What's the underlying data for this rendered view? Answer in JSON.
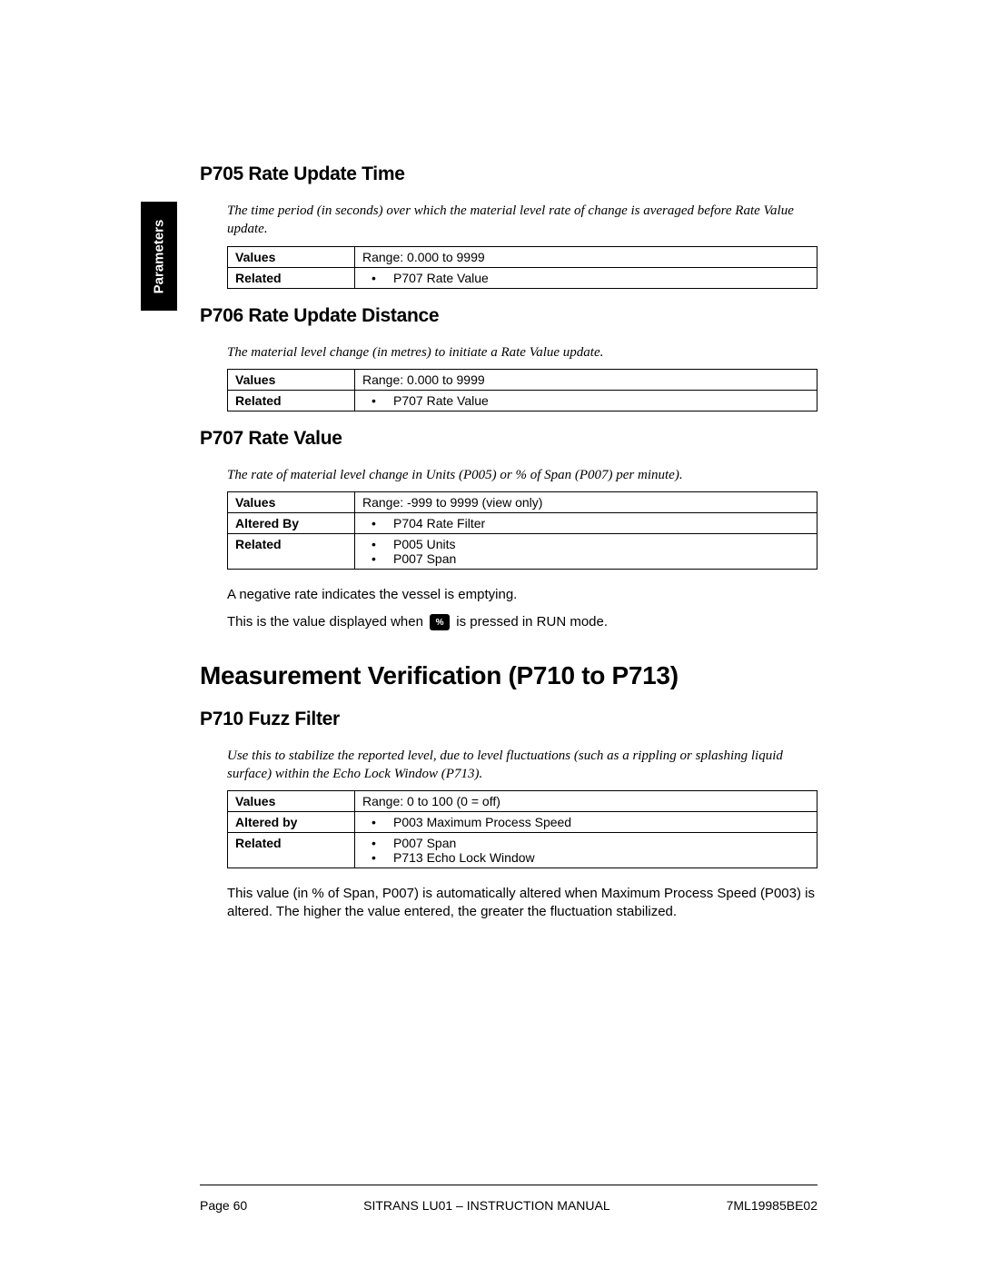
{
  "sideTab": "Parameters",
  "sections": {
    "p705": {
      "heading": "P705 Rate Update Time",
      "desc": "The time period (in seconds) over which the material level rate of change is averaged before Rate Value update.",
      "rows": [
        {
          "label": "Values",
          "text": "Range: 0.000 to 9999"
        },
        {
          "label": "Related",
          "list": [
            "P707 Rate Value"
          ]
        }
      ]
    },
    "p706": {
      "heading": "P706 Rate Update Distance",
      "desc": "The material level change (in metres) to initiate a Rate Value update.",
      "rows": [
        {
          "label": "Values",
          "text": "Range: 0.000 to 9999"
        },
        {
          "label": "Related",
          "list": [
            "P707 Rate Value"
          ]
        }
      ]
    },
    "p707": {
      "heading": "P707 Rate Value",
      "desc": "The rate of material level change in Units (P005) or % of Span (P007) per minute).",
      "rows": [
        {
          "label": "Values",
          "text": "Range: -999 to 9999 (view only)"
        },
        {
          "label": "Altered By",
          "list": [
            "P704 Rate Filter"
          ]
        },
        {
          "label": "Related",
          "list": [
            "P005 Units",
            "P007 Span"
          ]
        }
      ],
      "note1": "A negative rate indicates the vessel is emptying.",
      "note2a": "This is the value displayed when ",
      "note2b": " is pressed in RUN mode."
    },
    "majorHeading": "Measurement Verification (P710 to P713)",
    "p710": {
      "heading": "P710 Fuzz Filter",
      "desc": "Use this to stabilize the reported level, due to level fluctuations (such as a rippling or splashing liquid surface) within the Echo Lock Window (P713).",
      "rows": [
        {
          "label": "Values",
          "text": "Range: 0 to 100 (0 = off)"
        },
        {
          "label": "Altered by",
          "list": [
            "P003 Maximum Process Speed"
          ]
        },
        {
          "label": "Related",
          "list": [
            "P007 Span",
            "P713 Echo Lock Window"
          ]
        }
      ],
      "note": "This value (in % of Span, P007) is automatically altered when Maximum Process Speed (P003) is altered. The higher the value entered, the greater the fluctuation stabilized."
    }
  },
  "iconKeyLabel": "%",
  "footer": {
    "left": "Page 60",
    "center": "SITRANS LU01 – INSTRUCTION MANUAL",
    "right": "7ML19985BE02"
  }
}
